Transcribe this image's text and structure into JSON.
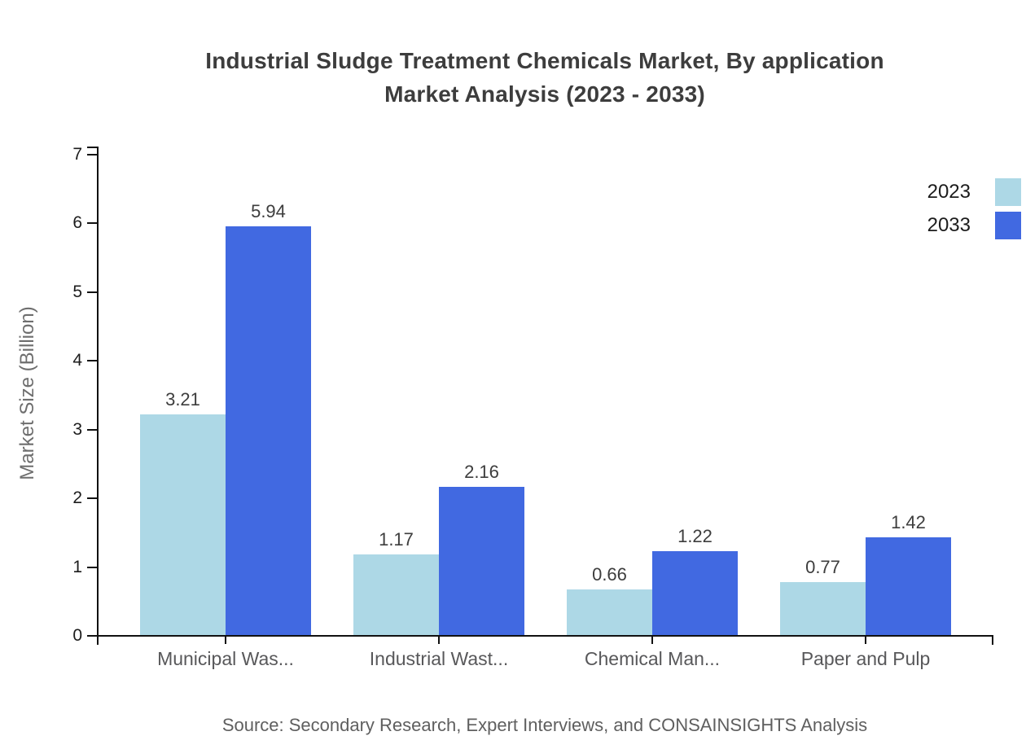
{
  "title": {
    "line1": "Industrial Sludge Treatment Chemicals Market, By application",
    "line2": "Market Analysis (2023 - 2033)"
  },
  "legend": [
    {
      "label": "2023",
      "color": "#ADD8E6"
    },
    {
      "label": "2033",
      "color": "#4169E1"
    }
  ],
  "source_note": "Source: Secondary Research, Expert Interviews, and CONSAINSIGHTS Analysis",
  "colors": {
    "axis": "#111111",
    "tick_label": "#1c1c1c",
    "value_label": "#3d3d3d",
    "category_label": "#58585a",
    "title": "#3d3d3d",
    "series_2023": "#ADD8E6",
    "series_2033": "#4169E1",
    "background": "#ffffff"
  },
  "chart_data": {
    "type": "bar",
    "title": "Industrial Sludge Treatment Chemicals Market, By application Market Analysis (2023 - 2033)",
    "categories": [
      "Municipal Was...",
      "Industrial Wast...",
      "Chemical Man...",
      "Paper and Pulp"
    ],
    "series": [
      {
        "name": "2023",
        "color": "#ADD8E6",
        "values": [
          3.21,
          1.17,
          0.66,
          0.77
        ]
      },
      {
        "name": "2033",
        "color": "#4169E1",
        "values": [
          5.94,
          2.16,
          1.22,
          1.42
        ]
      }
    ],
    "xlabel": "",
    "ylabel": "Market Size (Billion)",
    "ylim": [
      0,
      7.13
    ],
    "yticks": [
      0,
      1,
      2,
      3,
      4,
      5,
      6,
      7
    ],
    "grid": false,
    "legend_position": "right",
    "value_labels": true,
    "value_label_format": "0.00"
  }
}
